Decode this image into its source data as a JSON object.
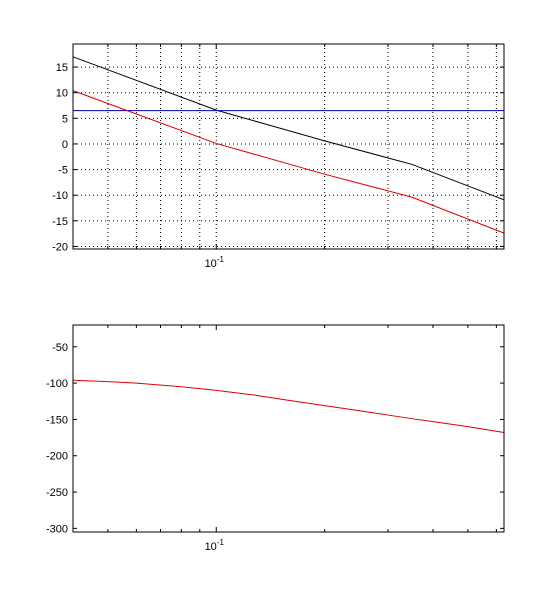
{
  "chart_data": [
    {
      "type": "line",
      "xscale": "log",
      "xlim": [
        0.04,
        0.63
      ],
      "ylim": [
        -20.5,
        19.5
      ],
      "grid": true,
      "y_ticks": [
        15,
        10,
        5,
        0,
        -5,
        -10,
        -15,
        -20
      ],
      "x_tick_labels": [
        {
          "value": 0.1,
          "base": "10",
          "exp": "-1"
        }
      ],
      "series": [
        {
          "color": "#000000",
          "x": [
            0.04,
            0.1,
            0.2,
            0.35,
            0.63
          ],
          "y": [
            17,
            6.6,
            0.6,
            -4.0,
            -10.9
          ]
        },
        {
          "color": "#0000aa",
          "x": [
            0.04,
            0.63
          ],
          "y": [
            6.5,
            6.5
          ]
        },
        {
          "color": "#dd0000",
          "x": [
            0.04,
            0.1,
            0.2,
            0.35,
            0.63
          ],
          "y": [
            10.4,
            0.1,
            -5.9,
            -10.4,
            -17.4
          ]
        }
      ]
    },
    {
      "type": "line",
      "xscale": "log",
      "xlim": [
        0.04,
        0.63
      ],
      "ylim": [
        -305,
        -20
      ],
      "grid": false,
      "y_ticks": [
        -50,
        -100,
        -150,
        -200,
        -250,
        -300
      ],
      "x_tick_labels": [
        {
          "value": 0.1,
          "base": "10",
          "exp": "-1"
        }
      ],
      "series": [
        {
          "color": "#dd0000",
          "x": [
            0.04,
            0.05,
            0.06,
            0.08,
            0.1,
            0.13,
            0.16,
            0.2,
            0.25,
            0.3,
            0.35,
            0.4,
            0.5,
            0.63
          ],
          "y": [
            -96,
            -98,
            -100,
            -105,
            -110,
            -117,
            -124,
            -131,
            -138,
            -144,
            -149,
            -153,
            -160,
            -168
          ]
        }
      ]
    }
  ]
}
